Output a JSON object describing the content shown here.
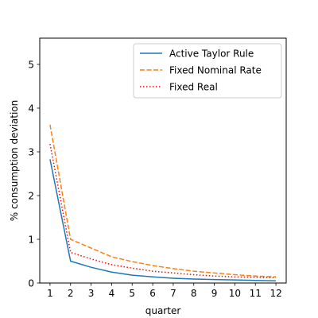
{
  "chart_data": {
    "type": "line",
    "x": [
      1,
      2,
      3,
      4,
      5,
      6,
      7,
      8,
      9,
      10,
      11,
      12
    ],
    "xticks": [
      "1",
      "2",
      "3",
      "4",
      "5",
      "6",
      "7",
      "8",
      "9",
      "10",
      "11",
      "12"
    ],
    "yticks": [
      "0",
      "1",
      "2",
      "3",
      "4",
      "5"
    ],
    "xlabel": "quarter",
    "ylabel": "% consumption deviation",
    "xlim": [
      0.5,
      12.5
    ],
    "ylim": [
      0,
      5.6
    ],
    "grid": false,
    "legend": "top-right",
    "series": [
      {
        "name": "Active Taylor Rule",
        "color": "#1f77b4",
        "style": "solid",
        "values": [
          2.83,
          0.5,
          0.36,
          0.25,
          0.18,
          0.14,
          0.11,
          0.09,
          0.08,
          0.07,
          0.06,
          0.05
        ]
      },
      {
        "name": "Fixed Nominal Rate",
        "color": "#ff7f0e",
        "style": "dashed",
        "values": [
          3.62,
          1.0,
          0.8,
          0.6,
          0.49,
          0.4,
          0.33,
          0.27,
          0.23,
          0.19,
          0.16,
          0.14
        ]
      },
      {
        "name": "Fixed Real",
        "color": "#ff0000",
        "style": "dotted",
        "values": [
          3.18,
          0.7,
          0.55,
          0.42,
          0.34,
          0.27,
          0.23,
          0.19,
          0.16,
          0.14,
          0.13,
          0.12
        ]
      }
    ]
  }
}
